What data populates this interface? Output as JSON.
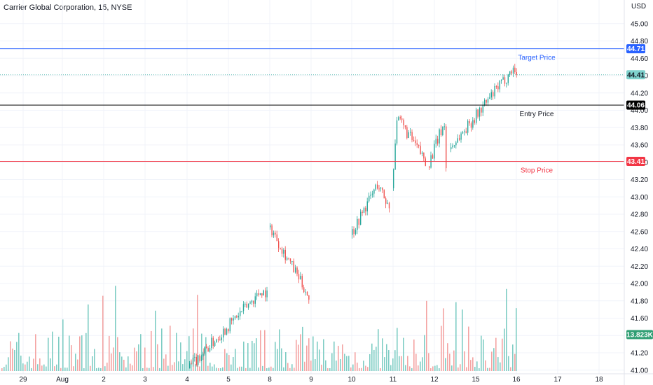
{
  "header": {
    "title": "Carrier Global Corporation, 15, NYSE"
  },
  "colors": {
    "up": "#26a69a",
    "down": "#ef5350",
    "target": "#2962ff",
    "entry": "#000000",
    "stop": "#f23645",
    "last": "#7fd1cd",
    "volume_up": "#7fcdc4",
    "volume_down": "#f4a4a3",
    "grid": "#f0f3fa"
  },
  "chart_data": {
    "type": "candlestick",
    "title": "Carrier Global Corporation, 15, NYSE",
    "currency_label": "USD",
    "x_ticks": [
      "29",
      "Aug",
      "2",
      "3",
      "4",
      "5",
      "8",
      "9",
      "10",
      "11",
      "12",
      "15",
      "16",
      "17",
      "18"
    ],
    "y_ticks": [
      "45.00",
      "44.80",
      "44.60",
      "44.40",
      "44.20",
      "44.00",
      "43.80",
      "43.60",
      "43.40",
      "43.20",
      "43.00",
      "42.80",
      "42.60",
      "42.40",
      "42.20",
      "42.00",
      "41.80",
      "41.60",
      "41.40",
      "41.20",
      "41.00"
    ],
    "ylim": [
      40.95,
      45.2
    ],
    "levels": [
      {
        "name": "Target Price",
        "value": 44.71,
        "tag": "44.71",
        "role": "target"
      },
      {
        "name": "Entry Price",
        "value": 44.06,
        "tag": "44.06",
        "role": "entry"
      },
      {
        "name": "Stop Price",
        "value": 43.41,
        "tag": "43.41",
        "role": "stop"
      }
    ],
    "last_price": {
      "value": 44.41,
      "tag": "44.41"
    },
    "volume": {
      "last_tag": "13.823K",
      "max_k": 20,
      "last_k": 13.823
    },
    "sessions": [
      {
        "label": "Aug 2-5",
        "start": 41.02,
        "end": 41.9,
        "hi_pt": 0.93,
        "lo": 41.0,
        "hi": 41.92
      },
      {
        "label": "Aug 8-9",
        "start": 42.65,
        "end": 41.85,
        "hi_pt": 0.02,
        "lo": 41.6,
        "hi": 42.67
      },
      {
        "label": "Aug 10",
        "start": 42.56,
        "end": 42.88,
        "hi_pt": 0.7,
        "lo": 42.55,
        "hi": 43.15
      },
      {
        "label": "Aug 11",
        "start": 43.1,
        "end": 43.42,
        "hi_pt": 0.15,
        "lo": 43.3,
        "hi": 43.92
      },
      {
        "label": "Aug 12",
        "start": 43.35,
        "end": 43.35,
        "hi_pt": 0.9,
        "lo": 43.05,
        "hi": 43.86
      },
      {
        "label": "Aug 15-16",
        "start": 43.55,
        "end": 44.41,
        "hi_pt": 0.97,
        "lo": 43.55,
        "hi": 44.5
      }
    ]
  }
}
